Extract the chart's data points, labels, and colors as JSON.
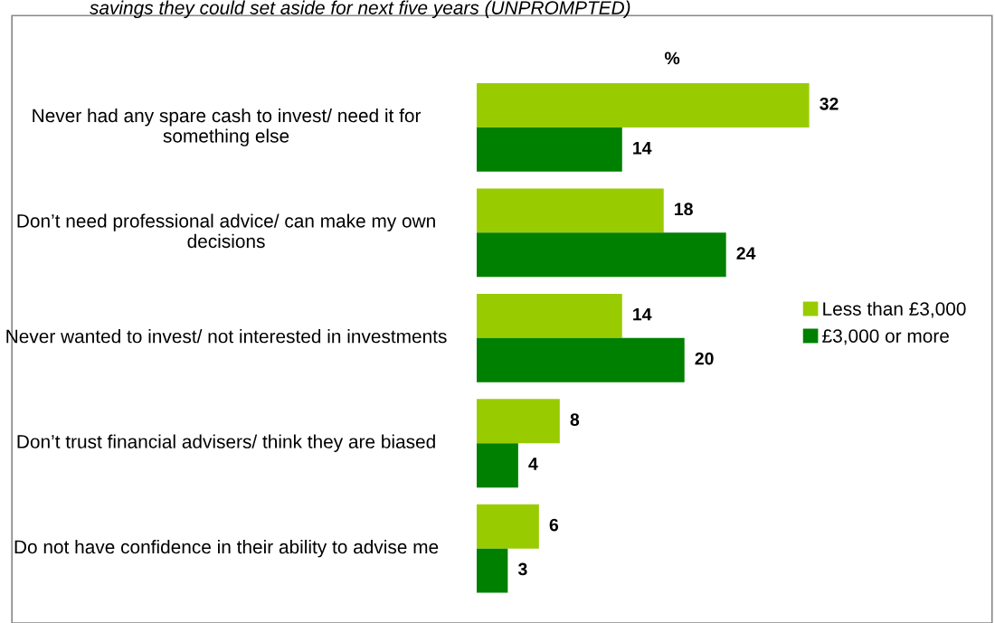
{
  "chart_data": {
    "type": "bar",
    "orientation": "horizontal",
    "title": "savings they could set aside for next five years (UNPROMPTED)",
    "xlabel": "%",
    "categories": [
      "Never had any spare cash to invest/ need it for something else",
      "Don’t need professional advice/ can make my own decisions",
      "Never wanted to invest/ not interested in investments",
      "Don’t trust financial advisers/ think they are biased",
      "Do not have confidence in their ability to advise me"
    ],
    "series": [
      {
        "name": "Less than £3,000",
        "color": "#99cc00",
        "values": [
          32,
          18,
          14,
          8,
          6
        ]
      },
      {
        "name": "£3,000 or more",
        "color": "#008000",
        "values": [
          14,
          24,
          20,
          4,
          3
        ]
      }
    ],
    "data_labels": true,
    "legend": "right",
    "tick_labels": "y"
  }
}
